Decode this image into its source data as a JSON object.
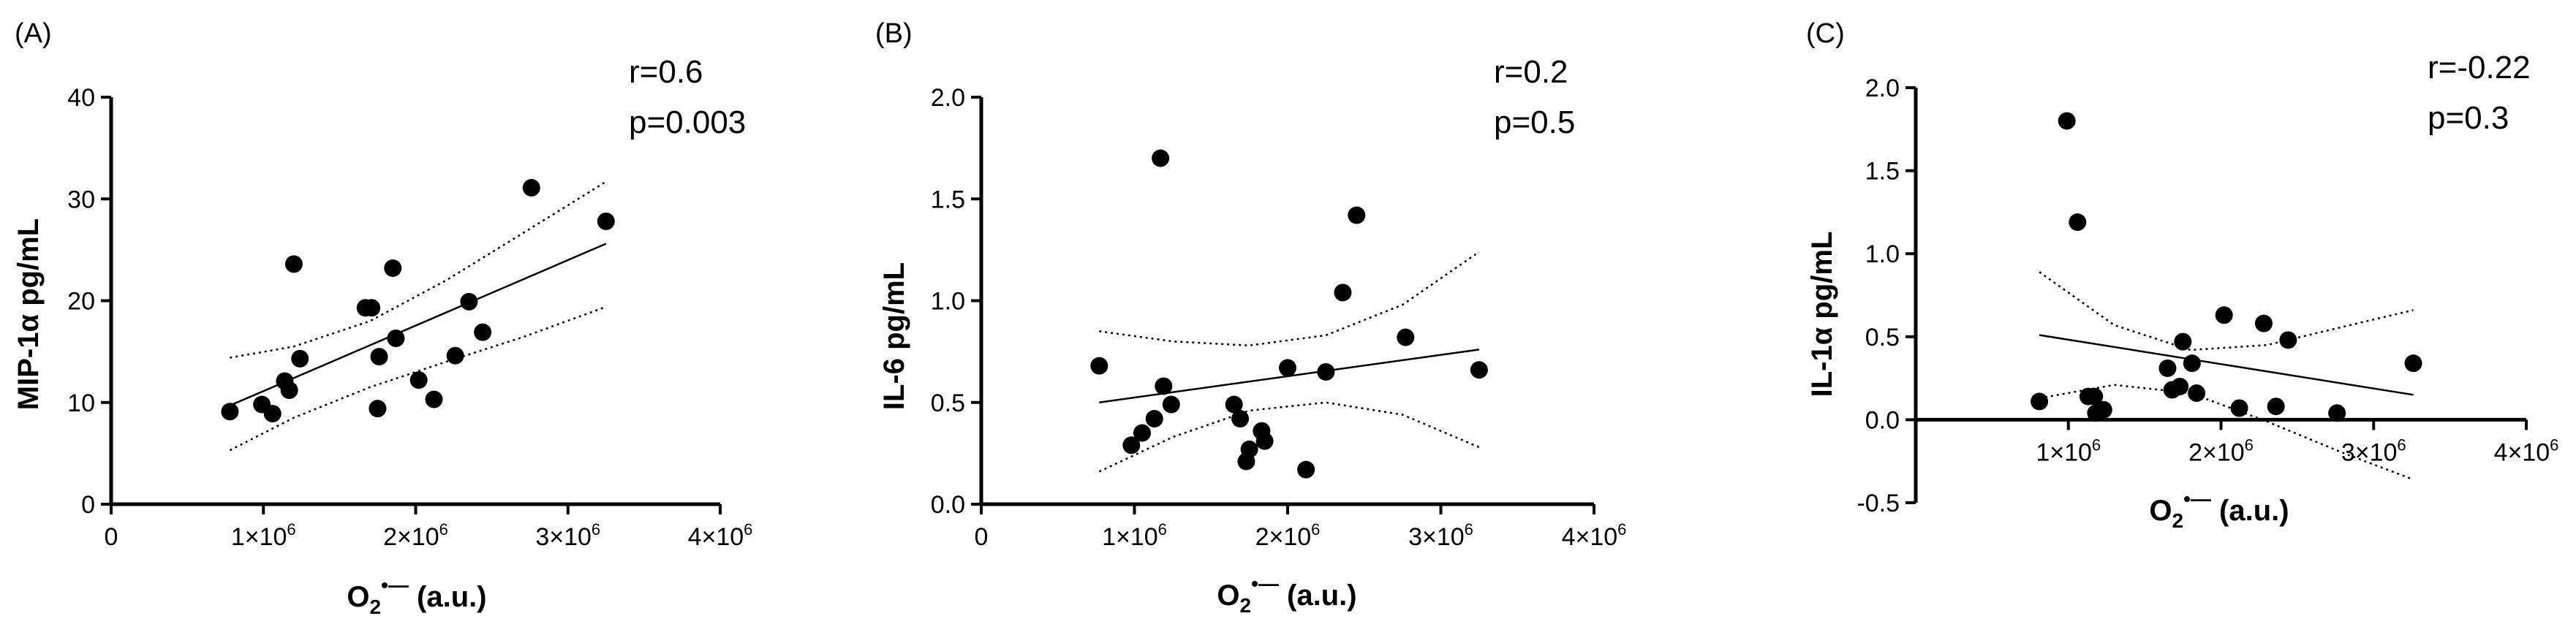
{
  "chart_data": [
    {
      "type": "scatter",
      "panel_label": "(A)",
      "ylabel": "MIP-1α pg/mL",
      "xlabel": {
        "base": "O",
        "sub": "2",
        "sup": "•—",
        "units": " (a.u.)"
      },
      "xlim": [
        0,
        4000000
      ],
      "ylim": [
        0,
        40
      ],
      "x_ticks": [
        0,
        1000000,
        2000000,
        3000000,
        4000000
      ],
      "x_tick_labels": [
        "0",
        "1×10",
        "2×10",
        "3×10",
        "4×10"
      ],
      "x_tick_exponent": "6",
      "y_ticks": [
        0,
        10,
        20,
        30,
        40
      ],
      "y_tick_labels": [
        "0",
        "10",
        "20",
        "30",
        "40"
      ],
      "stats": {
        "r": "r=0.6",
        "p": "p=0.003"
      },
      "points": [
        [
          780000,
          9.1
        ],
        [
          990000,
          9.8
        ],
        [
          1060000,
          8.9
        ],
        [
          1140000,
          12.1
        ],
        [
          1170000,
          11.2
        ],
        [
          1200000,
          23.6
        ],
        [
          1240000,
          14.3
        ],
        [
          1670000,
          19.3
        ],
        [
          1710000,
          19.3
        ],
        [
          1750000,
          9.4
        ],
        [
          1760000,
          14.5
        ],
        [
          1850000,
          23.2
        ],
        [
          1870000,
          16.3
        ],
        [
          2020000,
          12.2
        ],
        [
          2120000,
          10.3
        ],
        [
          2260000,
          14.6
        ],
        [
          2350000,
          19.9
        ],
        [
          2440000,
          16.9
        ],
        [
          2760000,
          31.1
        ],
        [
          3250000,
          27.8
        ]
      ],
      "fit": {
        "x": [
          780000,
          3250000
        ],
        "y": [
          9.7,
          25.6
        ]
      },
      "ci_upper": {
        "x": [
          780000,
          1200000,
          1700000,
          2200000,
          2700000,
          3250000
        ],
        "y": [
          14.4,
          15.5,
          18.0,
          22.0,
          26.6,
          31.7
        ]
      },
      "ci_lower": {
        "x": [
          780000,
          1200000,
          1700000,
          2200000,
          2700000,
          3250000
        ],
        "y": [
          5.3,
          8.5,
          11.5,
          14.0,
          16.4,
          19.4
        ]
      }
    },
    {
      "type": "scatter",
      "panel_label": "(B)",
      "ylabel": "IL-6 pg/mL",
      "xlabel": {
        "base": "O",
        "sub": "2",
        "sup": "•—",
        "units": " (a.u.)"
      },
      "xlim": [
        0,
        4000000
      ],
      "ylim": [
        0,
        2.0
      ],
      "x_ticks": [
        0,
        1000000,
        2000000,
        3000000,
        4000000
      ],
      "x_tick_labels": [
        "0",
        "1×10",
        "2×10",
        "3×10",
        "4×10"
      ],
      "x_tick_exponent": "6",
      "y_ticks": [
        0,
        0.5,
        1.0,
        1.5,
        2.0
      ],
      "y_tick_labels": [
        "0.0",
        "0.5",
        "1.0",
        "1.5",
        "2.0"
      ],
      "stats": {
        "r": "r=0.2",
        "p": "p=0.5"
      },
      "points": [
        [
          770000,
          0.68
        ],
        [
          980000,
          0.29
        ],
        [
          1050000,
          0.35
        ],
        [
          1130000,
          0.42
        ],
        [
          1170000,
          1.7
        ],
        [
          1190000,
          0.58
        ],
        [
          1240000,
          0.49
        ],
        [
          1650000,
          0.49
        ],
        [
          1690000,
          0.42
        ],
        [
          1730000,
          0.21
        ],
        [
          1750000,
          0.27
        ],
        [
          1830000,
          0.36
        ],
        [
          1850000,
          0.31
        ],
        [
          2000000,
          0.67
        ],
        [
          2120000,
          0.17
        ],
        [
          2250000,
          0.65
        ],
        [
          2360000,
          1.04
        ],
        [
          2450000,
          1.42
        ],
        [
          2770000,
          0.82
        ],
        [
          3250000,
          0.66
        ]
      ],
      "fit": {
        "x": [
          770000,
          3250000
        ],
        "y": [
          0.5,
          0.76
        ]
      },
      "ci_upper": {
        "x": [
          770000,
          1250000,
          1750000,
          2250000,
          2750000,
          3250000
        ],
        "y": [
          0.85,
          0.8,
          0.78,
          0.83,
          0.98,
          1.24
        ]
      },
      "ci_lower": {
        "x": [
          770000,
          1250000,
          1750000,
          2250000,
          2750000,
          3250000
        ],
        "y": [
          0.16,
          0.33,
          0.46,
          0.5,
          0.44,
          0.28
        ]
      }
    },
    {
      "type": "scatter",
      "panel_label": "(C)",
      "ylabel": "IL-1α pg/mL",
      "xlabel": {
        "base": "O",
        "sub": "2",
        "sup": "•—",
        "units": " (a.u.)"
      },
      "xlim": [
        0,
        4000000
      ],
      "ylim": [
        -0.5,
        2.0
      ],
      "x_axis_at": 0,
      "x_ticks": [
        1000000,
        2000000,
        3000000,
        4000000
      ],
      "x_tick_labels": [
        "1×10",
        "2×10",
        "3×10",
        "4×10"
      ],
      "x_tick_exponent": "6",
      "y_ticks": [
        -0.5,
        0,
        0.5,
        1.0,
        1.5,
        2.0
      ],
      "y_tick_labels": [
        "-0.5",
        "0.0",
        "0.5",
        "1.0",
        "1.5",
        "2.0"
      ],
      "stats": {
        "r": "r=-0.22",
        "p": "p=0.3"
      },
      "points": [
        [
          810000,
          0.11
        ],
        [
          990000,
          1.8
        ],
        [
          1060000,
          1.19
        ],
        [
          1130000,
          0.14
        ],
        [
          1170000,
          0.14
        ],
        [
          1180000,
          0.04
        ],
        [
          1230000,
          0.06
        ],
        [
          1650000,
          0.31
        ],
        [
          1680000,
          0.18
        ],
        [
          1730000,
          0.2
        ],
        [
          1750000,
          0.47
        ],
        [
          1810000,
          0.34
        ],
        [
          1840000,
          0.16
        ],
        [
          2020000,
          0.63
        ],
        [
          2120000,
          0.07
        ],
        [
          2280000,
          0.58
        ],
        [
          2360000,
          0.08
        ],
        [
          2440000,
          0.48
        ],
        [
          2760000,
          0.04
        ],
        [
          3260000,
          0.34
        ]
      ],
      "fit": {
        "x": [
          810000,
          3260000
        ],
        "y": [
          0.51,
          0.15
        ]
      },
      "ci_upper": {
        "x": [
          810000,
          1300000,
          1800000,
          2300000,
          2800000,
          3260000
        ],
        "y": [
          0.89,
          0.57,
          0.42,
          0.45,
          0.56,
          0.66
        ]
      },
      "ci_lower": {
        "x": [
          810000,
          1300000,
          1800000,
          2300000,
          2800000,
          3260000
        ],
        "y": [
          0.13,
          0.21,
          0.16,
          -0.01,
          -0.2,
          -0.36
        ]
      }
    }
  ]
}
